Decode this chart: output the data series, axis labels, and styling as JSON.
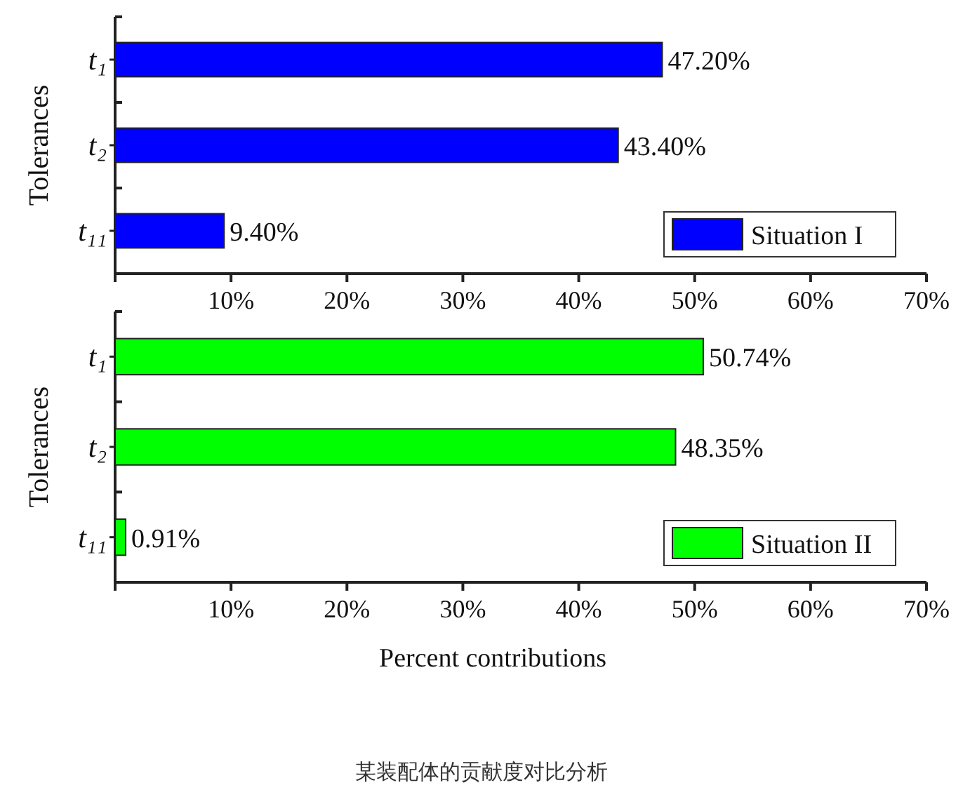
{
  "chart_data": [
    {
      "type": "bar",
      "orientation": "horizontal",
      "ylabel": "Tolerances",
      "categories": [
        "t₁",
        "t₂",
        "t₁₁"
      ],
      "series": [
        {
          "name": "Situation I",
          "color": "#0000ff",
          "values": [
            47.2,
            43.4,
            9.4
          ],
          "value_labels": [
            "47.20%",
            "43.40%",
            "9.40%"
          ]
        }
      ],
      "xlim": [
        0,
        70
      ],
      "xticks": [
        {
          "value": 0,
          "label": null
        },
        {
          "value": 10,
          "label": "10%"
        },
        {
          "value": 20,
          "label": "20%"
        },
        {
          "value": 30,
          "label": "30%"
        },
        {
          "value": 40,
          "label": "40%"
        },
        {
          "value": 50,
          "label": "50%"
        },
        {
          "value": 60,
          "label": "60%"
        },
        {
          "value": 70,
          "label": "70%"
        }
      ],
      "legend": "bottom right"
    },
    {
      "type": "bar",
      "orientation": "horizontal",
      "ylabel": "Tolerances",
      "xlabel": "Percent contributions",
      "categories": [
        "t₁",
        "t₂",
        "t₁₁"
      ],
      "series": [
        {
          "name": "Situation II",
          "color": "#00ff00",
          "values": [
            50.74,
            48.35,
            0.91
          ],
          "value_labels": [
            "50.74%",
            "48.35%",
            "0.91%"
          ]
        }
      ],
      "xlim": [
        0,
        70
      ],
      "xticks": [
        {
          "value": 0,
          "label": null
        },
        {
          "value": 10,
          "label": "10%"
        },
        {
          "value": 20,
          "label": "20%"
        },
        {
          "value": 30,
          "label": "30%"
        },
        {
          "value": 40,
          "label": "40%"
        },
        {
          "value": 50,
          "label": "50%"
        },
        {
          "value": 60,
          "label": "60%"
        },
        {
          "value": 70,
          "label": "70%"
        }
      ],
      "legend": "bottom right",
      "annotations": [
        "某装配体的贡献度对比分析"
      ]
    }
  ]
}
